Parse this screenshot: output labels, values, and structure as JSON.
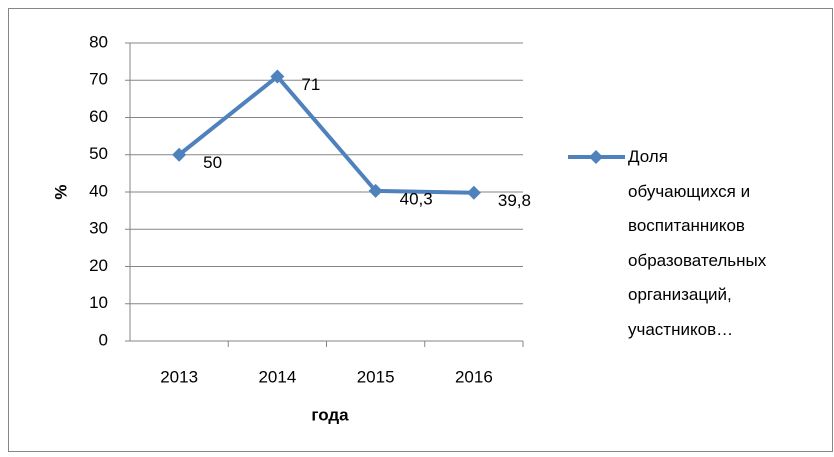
{
  "chart_data": {
    "type": "line",
    "x_label": "года",
    "y_label": "%",
    "categories": [
      "2013",
      "2014",
      "2015",
      "2016"
    ],
    "series": [
      {
        "name": "Доля обучающихся и воспитанников образовательных организаций, участников…",
        "color": "#4f81bd",
        "values": [
          50,
          71,
          40.3,
          39.8
        ],
        "value_labels": [
          "50",
          "71",
          "40,3",
          "39,8"
        ]
      }
    ],
    "ylim": [
      0,
      80
    ],
    "yticks": [
      0,
      10,
      20,
      30,
      40,
      50,
      60,
      70,
      80
    ],
    "grid": true,
    "legend": "right"
  }
}
